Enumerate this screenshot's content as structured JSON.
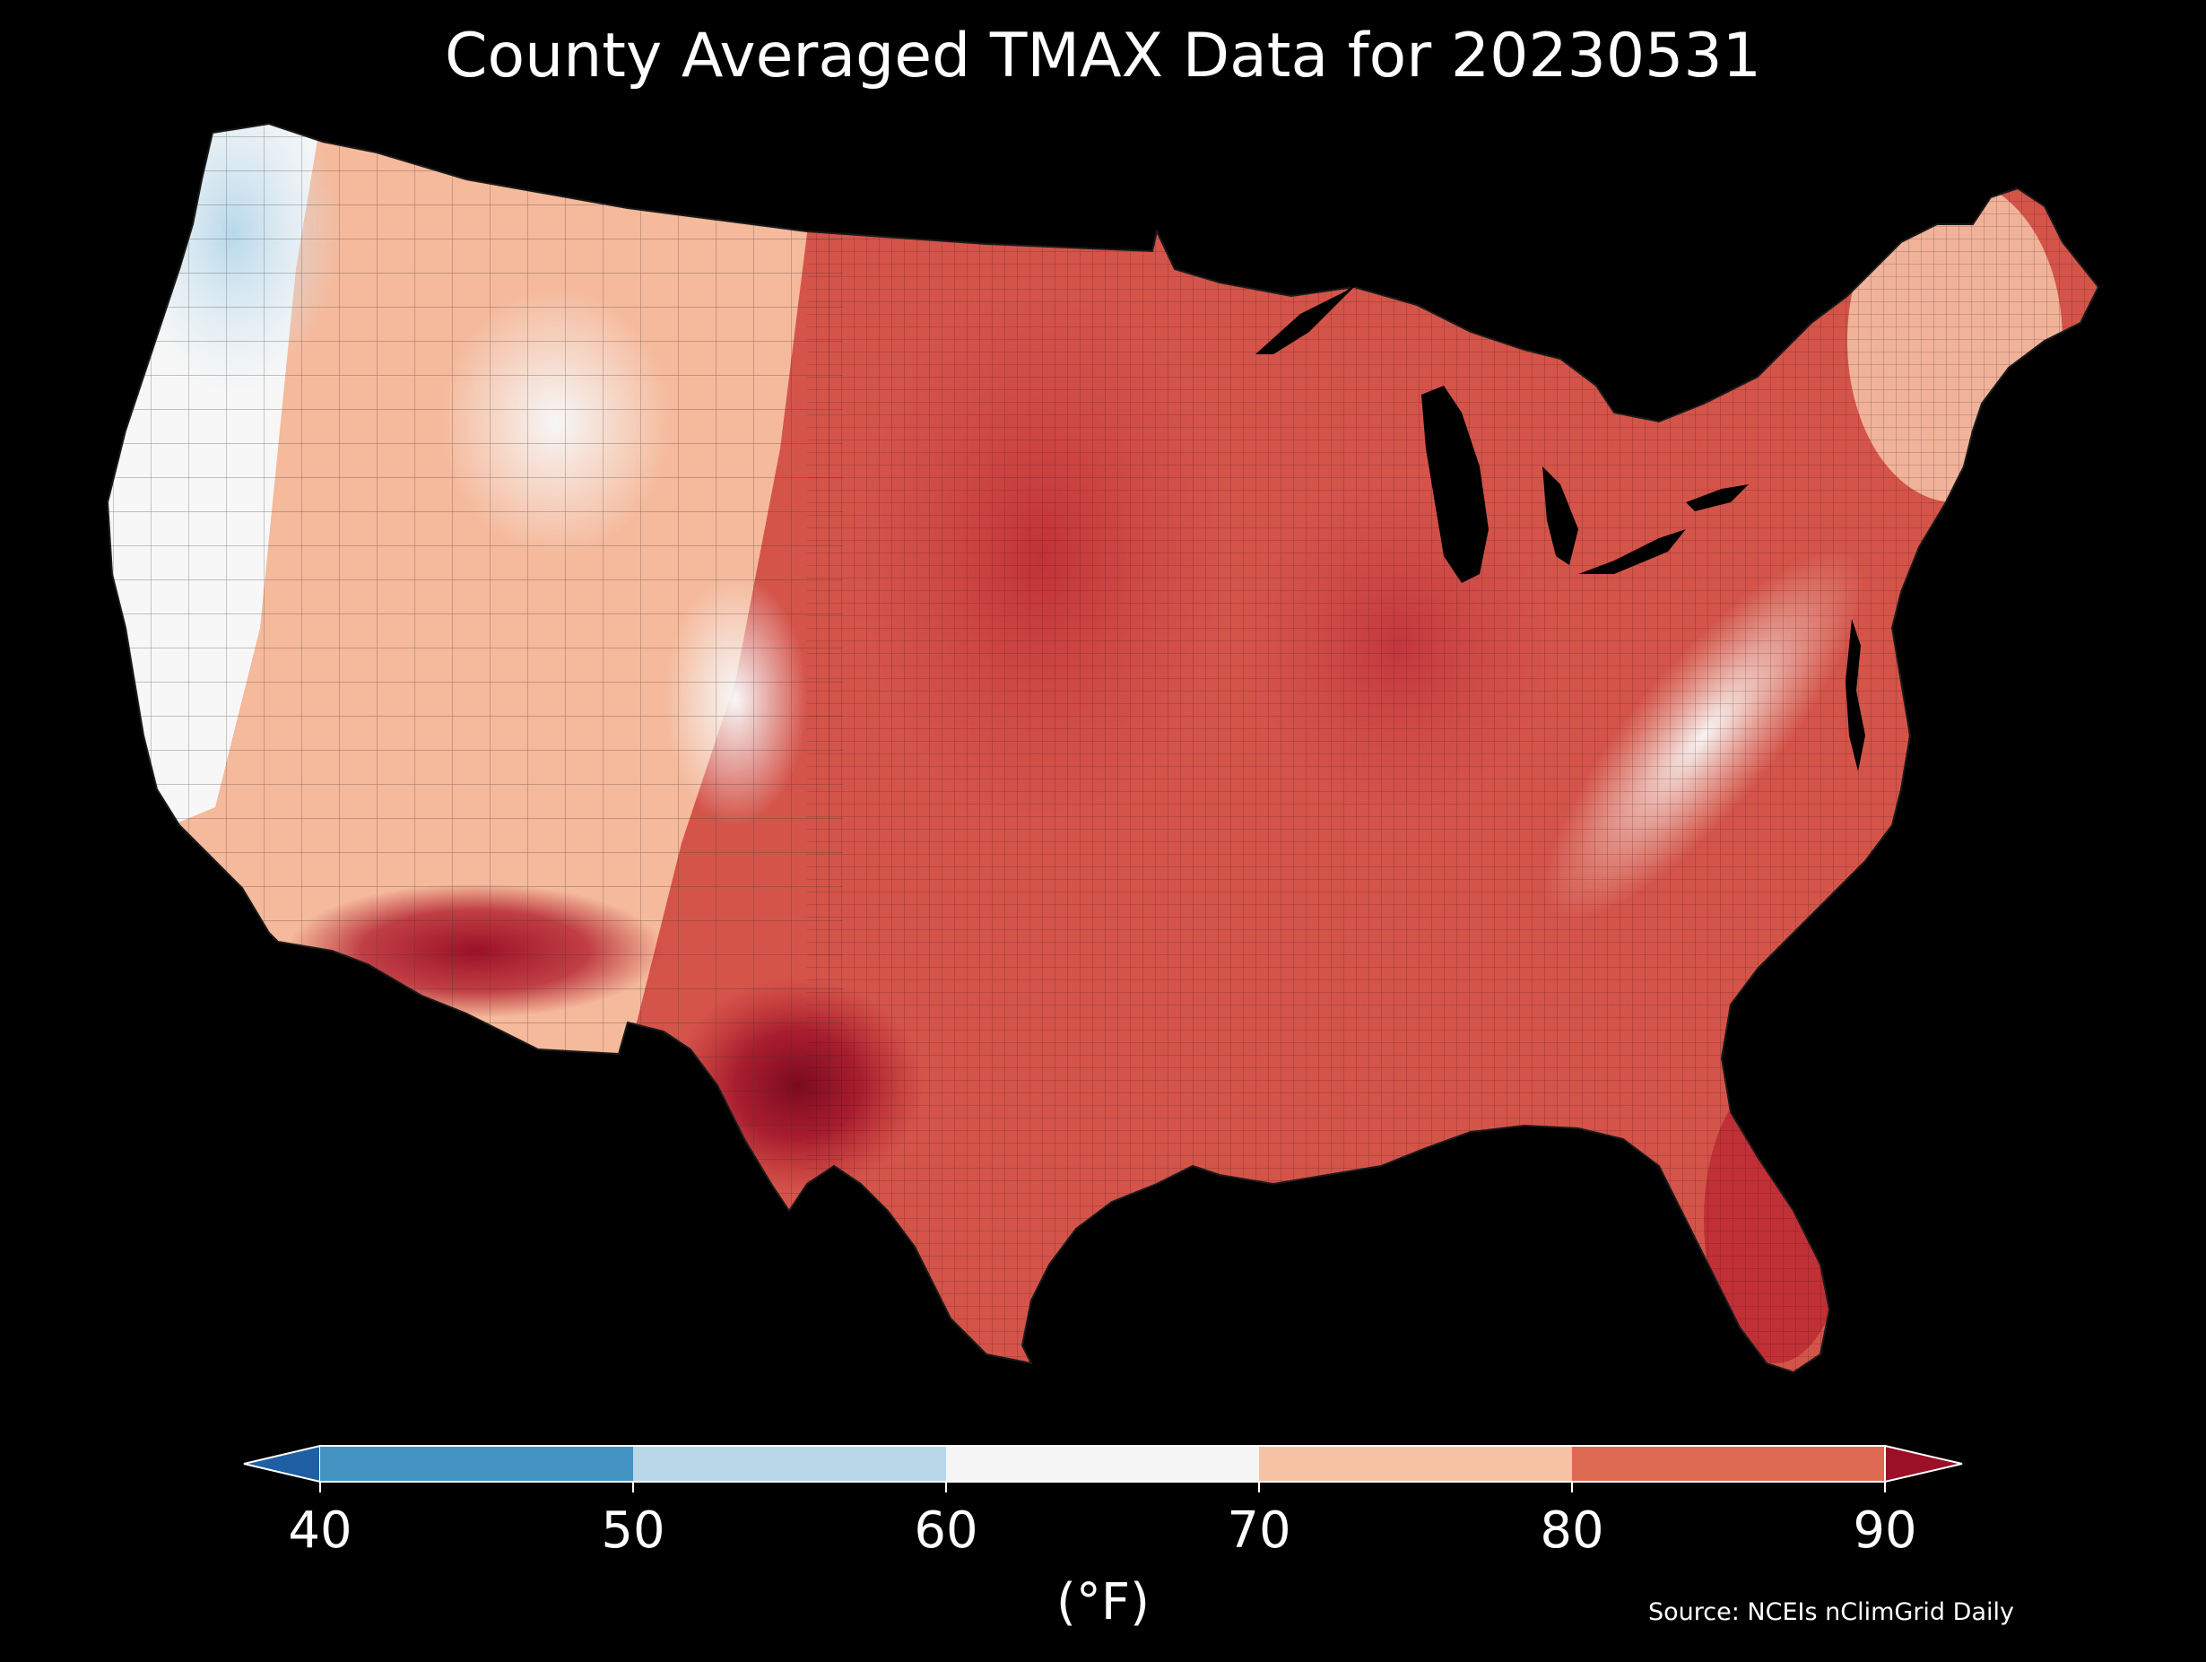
{
  "title": "County Averaged TMAX Data for 20230531",
  "source": "Source: NCEIs nClimGrid Daily",
  "colorbar": {
    "unit": "(°F)",
    "ticks": [
      "40",
      "50",
      "60",
      "70",
      "80",
      "90"
    ],
    "bins": [
      {
        "range": "<40",
        "color": "#1f5fa3"
      },
      {
        "range": "40-50",
        "color": "#4393c3"
      },
      {
        "range": "50-60",
        "color": "#b8d8ea"
      },
      {
        "range": "60-70",
        "color": "#f5f5f5"
      },
      {
        "range": "70-80",
        "color": "#f8c3a4"
      },
      {
        "range": "80-90",
        "color": "#de6a54"
      },
      {
        "range": ">90",
        "color": "#9b1027"
      }
    ],
    "extend": "both"
  },
  "map": {
    "region": "Contiguous United States",
    "resolution": "county",
    "variable": "TMAX",
    "background_color": "#000000",
    "county_border_color": "#222222",
    "regional_pattern": [
      {
        "region": "Pacific Northwest coast",
        "range": "50-60"
      },
      {
        "region": "California coast and Great Basin",
        "range": "60-70"
      },
      {
        "region": "Northern and Central Rockies",
        "range": "60-70"
      },
      {
        "region": "Interior West",
        "range": "70-80"
      },
      {
        "region": "Great Plains and Midwest",
        "range": "80-90"
      },
      {
        "region": "Desert Southwest",
        "range": ">90"
      },
      {
        "region": "South Texas",
        "range": ">90"
      },
      {
        "region": "Southern Appalachians",
        "range": "60-70"
      },
      {
        "region": "Northeast",
        "range": "70-80"
      },
      {
        "region": "Southeast and Gulf Coast",
        "range": "80-90"
      },
      {
        "region": "South Florida",
        "range": ">90"
      }
    ]
  }
}
